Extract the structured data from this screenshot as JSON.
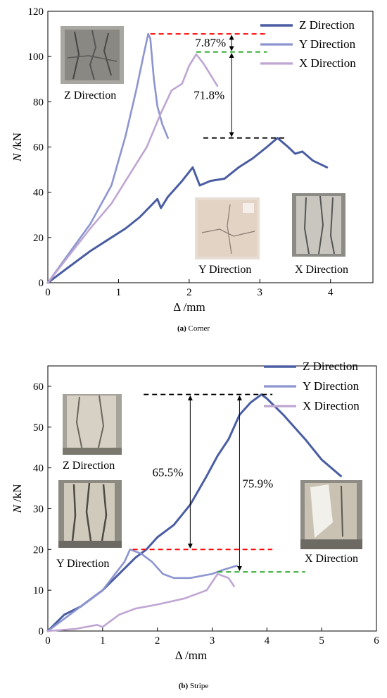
{
  "charts": [
    {
      "id": "a",
      "caption_letter": "(a)",
      "caption_text": "Corner",
      "xlim": [
        0,
        4.6
      ],
      "ylim": [
        0,
        120
      ],
      "xticks": [
        0,
        1,
        2,
        3,
        4
      ],
      "yticks": [
        0,
        20,
        40,
        60,
        80,
        100,
        120
      ],
      "xlabel": "Δ /mm",
      "ylabel_italic": "N",
      "ylabel_rest": " /kN",
      "legend": [
        "Z Direction",
        "Y  Direction",
        "X Direction"
      ],
      "photo_labels": [
        "Z Direction",
        "Y Direction",
        "X Direction"
      ],
      "annotations": [
        "7.87%",
        "71.8%"
      ]
    },
    {
      "id": "b",
      "caption_letter": "(b)",
      "caption_text": "Stripe",
      "xlim": [
        0,
        6
      ],
      "ylim": [
        0,
        65
      ],
      "xticks": [
        0,
        1,
        2,
        3,
        4,
        5,
        6
      ],
      "yticks": [
        0,
        10,
        20,
        30,
        40,
        50,
        60
      ],
      "xlabel": "Δ /mm",
      "ylabel_italic": "N",
      "ylabel_rest": " /kN",
      "legend": [
        "Z Direction",
        "Y Direction",
        "X Direction"
      ],
      "photo_labels": [
        "Z Direction",
        "Y Direction",
        "X Direction"
      ],
      "annotations": [
        "65.5%",
        "75.9%"
      ]
    }
  ],
  "colors": {
    "z": "#4a5da2",
    "y": "#8c95cf",
    "x": "#bfa6d2",
    "red_dash": "#ff0000",
    "green_dash": "#1aa01a",
    "black_dash": "#000000"
  },
  "chart_data": [
    {
      "type": "line",
      "title": "Corner",
      "xlabel": "Δ /mm",
      "ylabel": "N /kN",
      "xlim": [
        0,
        4.6
      ],
      "ylim": [
        0,
        120
      ],
      "grid": false,
      "legend_position": "top-right",
      "series": [
        {
          "name": "Z Direction",
          "x": [
            0,
            0.3,
            0.6,
            0.9,
            1.1,
            1.3,
            1.55,
            1.6,
            1.7,
            1.9,
            2.05,
            2.15,
            2.3,
            2.5,
            2.7,
            2.9,
            3.1,
            3.25,
            3.4,
            3.5,
            3.6,
            3.75,
            3.95
          ],
          "y": [
            0,
            7,
            14,
            20,
            24,
            29,
            37,
            33,
            38,
            45,
            51,
            43,
            45,
            46,
            51,
            55,
            60,
            64,
            60,
            57,
            58,
            54,
            51
          ]
        },
        {
          "name": "Y  Direction",
          "x": [
            0,
            0.3,
            0.6,
            0.9,
            1.1,
            1.25,
            1.35,
            1.42,
            1.45,
            1.5,
            1.55,
            1.62,
            1.7
          ],
          "y": [
            0,
            13,
            26,
            43,
            65,
            85,
            100,
            110,
            108,
            90,
            78,
            70,
            64
          ]
        },
        {
          "name": "X Direction",
          "x": [
            0,
            0.3,
            0.6,
            0.9,
            1.1,
            1.4,
            1.6,
            1.75,
            1.9,
            2.0,
            2.1,
            2.2,
            2.3,
            2.4
          ],
          "y": [
            0,
            12,
            24,
            35,
            45,
            60,
            75,
            85,
            88,
            96,
            101,
            97,
            92,
            87
          ]
        }
      ],
      "annotations": [
        {
          "text": "7.87%",
          "between": [
            110,
            102
          ]
        },
        {
          "text": "71.8%",
          "between": [
            102,
            64
          ]
        }
      ]
    },
    {
      "type": "line",
      "title": "Stripe",
      "xlabel": "Δ /mm",
      "ylabel": "N /kN",
      "xlim": [
        0,
        6
      ],
      "ylim": [
        0,
        65
      ],
      "grid": false,
      "legend_position": "top-right",
      "series": [
        {
          "name": "Z Direction",
          "x": [
            0,
            0.3,
            0.6,
            1.0,
            1.3,
            1.6,
            1.8,
            2.0,
            2.3,
            2.6,
            2.9,
            3.1,
            3.3,
            3.5,
            3.7,
            3.9,
            4.0,
            4.3,
            4.7,
            5.0,
            5.35
          ],
          "y": [
            0,
            4,
            6,
            10,
            14,
            18,
            20,
            23,
            26,
            31,
            38,
            43,
            47,
            53,
            56,
            58,
            57,
            53,
            47,
            42,
            38
          ]
        },
        {
          "name": "Y Direction",
          "x": [
            0,
            0.5,
            1.0,
            1.4,
            1.5,
            1.7,
            1.9,
            2.1,
            2.3,
            2.6,
            3.0,
            3.2,
            3.45
          ],
          "y": [
            0,
            5,
            10,
            17,
            20,
            19,
            17,
            14,
            13,
            13,
            14,
            15,
            16
          ]
        },
        {
          "name": "X Direction",
          "x": [
            0,
            0.5,
            0.9,
            1.0,
            1.3,
            1.6,
            2.0,
            2.5,
            2.9,
            3.1,
            3.3,
            3.4
          ],
          "y": [
            0,
            0.5,
            1.5,
            1,
            4,
            5.5,
            6.5,
            8,
            10,
            14,
            13,
            11
          ]
        }
      ],
      "annotations": [
        {
          "text": "65.5%",
          "between": [
            58,
            20
          ]
        },
        {
          "text": "75.9%",
          "between": [
            58,
            14.5
          ]
        }
      ]
    }
  ]
}
